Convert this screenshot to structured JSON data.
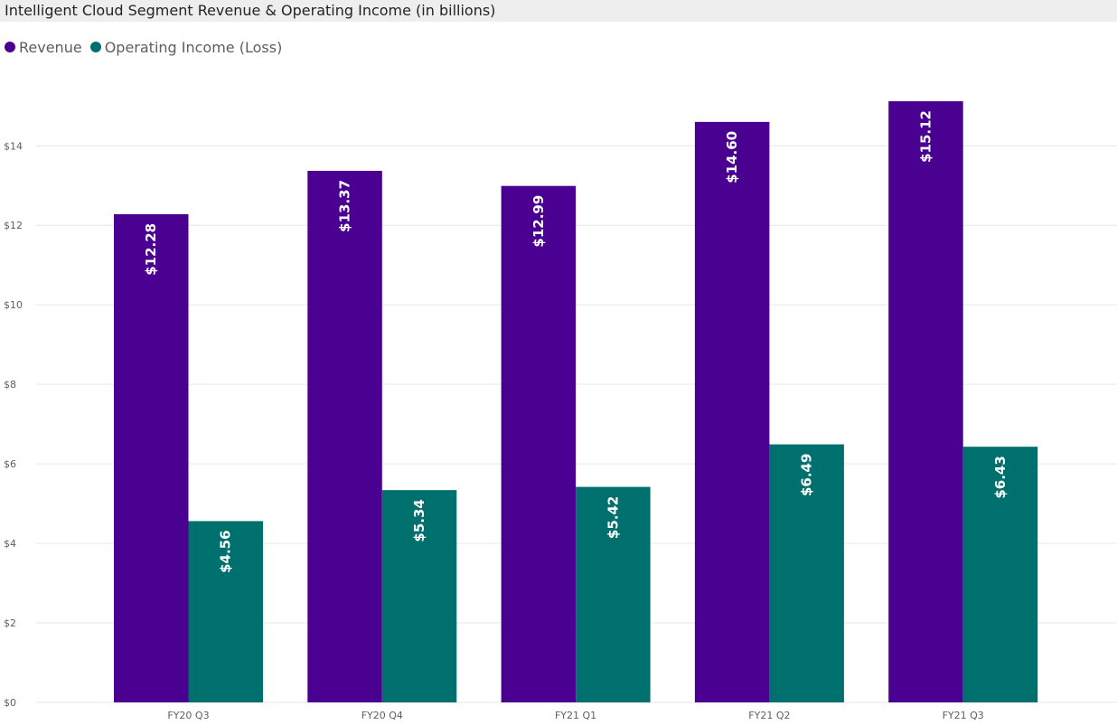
{
  "chart_data": {
    "type": "bar",
    "title": "Intelligent Cloud Segment Revenue & Operating Income (in billions)",
    "categories": [
      "FY20 Q3",
      "FY20 Q4",
      "FY21 Q1",
      "FY21 Q2",
      "FY21 Q3"
    ],
    "series": [
      {
        "name": "Revenue",
        "color": "#4a0090",
        "values": [
          12.28,
          13.37,
          12.99,
          14.6,
          15.12
        ],
        "labels": [
          "$12.28",
          "$13.37",
          "$12.99",
          "$14.60",
          "$15.12"
        ]
      },
      {
        "name": "Operating Income (Loss)",
        "color": "#00706e",
        "values": [
          4.56,
          5.34,
          5.42,
          6.49,
          6.43
        ],
        "labels": [
          "$4.56",
          "$5.34",
          "$5.42",
          "$6.49",
          "$6.43"
        ]
      }
    ],
    "yticks": [
      0,
      2,
      4,
      6,
      8,
      10,
      12,
      14
    ],
    "ytick_labels": [
      "$0",
      "$2",
      "$4",
      "$6",
      "$8",
      "$10",
      "$12",
      "$14"
    ],
    "ylim": [
      0,
      15.12
    ],
    "xlabel": "",
    "ylabel": "",
    "grid": true,
    "legend_position": "top-left"
  }
}
